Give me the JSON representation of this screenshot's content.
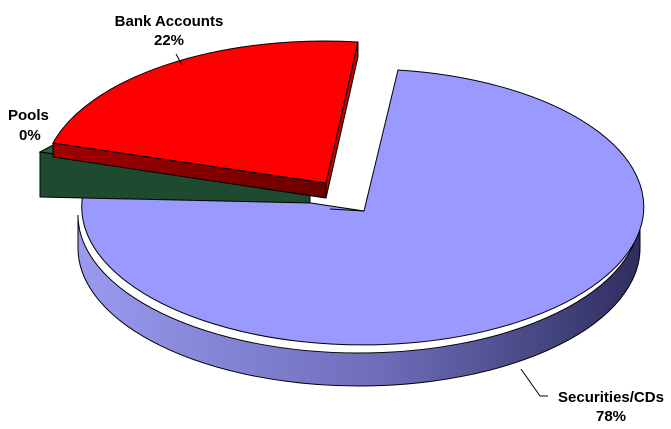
{
  "chart_data": {
    "type": "pie",
    "style": "3d-exploded",
    "title": "",
    "legend": "none",
    "slices": [
      {
        "label": "Securities/CDs",
        "percent_label": "78%",
        "value": 78,
        "color": "#9999FF",
        "side_color": "#6B6BC2"
      },
      {
        "label": "Bank Accounts",
        "percent_label": "22%",
        "value": 22,
        "color": "#FF0000",
        "side_color": "#9E0000"
      },
      {
        "label": "Pools",
        "percent_label": "0%",
        "value": 0,
        "color": "#1E4A30",
        "side_color": "#143322"
      }
    ]
  }
}
